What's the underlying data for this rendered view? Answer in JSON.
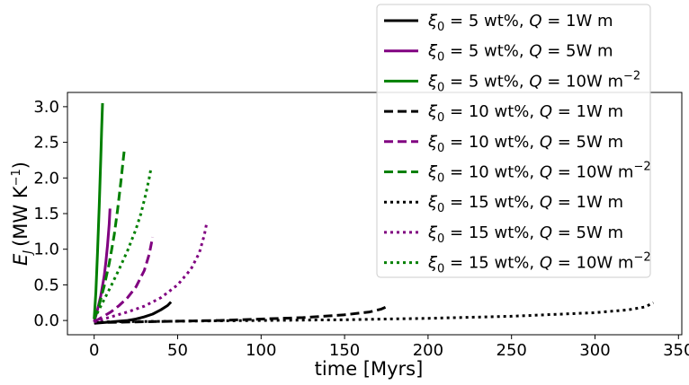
{
  "chart_data": {
    "type": "line",
    "title": "",
    "xlabel": "time [Myrs]",
    "ylabel": {
      "main": "E",
      "sub": "J",
      "unit": "(MW K",
      "unit_exp": "−1",
      "unit_close": ")"
    },
    "xlim": [
      -16,
      352
    ],
    "ylim": [
      -0.2,
      3.2
    ],
    "xticks": [
      0,
      50,
      100,
      150,
      200,
      250,
      300,
      350
    ],
    "yticks": [
      0.0,
      0.5,
      1.0,
      1.5,
      2.0,
      2.5,
      3.0
    ],
    "ytick_labels": [
      "0.0",
      "0.5",
      "1.0",
      "1.5",
      "2.0",
      "2.5",
      "3.0"
    ],
    "grid": false,
    "legend_placement": "top-right",
    "colors": {
      "black": "#000000",
      "purple": "#800080",
      "green": "#008000"
    },
    "series": [
      {
        "label": {
          "xi": "5",
          "Q": "1",
          "exp": ""
        },
        "color": "black",
        "dash": "solid",
        "x": [
          0,
          5,
          10,
          15,
          20,
          25,
          30,
          35,
          40,
          44,
          46
        ],
        "y": [
          -0.04,
          -0.03,
          -0.02,
          -0.01,
          0.0,
          0.02,
          0.05,
          0.09,
          0.15,
          0.21,
          0.26
        ]
      },
      {
        "label": {
          "xi": "5",
          "Q": "5",
          "exp": ""
        },
        "color": "purple",
        "dash": "solid",
        "x": [
          0,
          2,
          4,
          6,
          7,
          8,
          9,
          9.5
        ],
        "y": [
          -0.02,
          0.15,
          0.35,
          0.62,
          0.82,
          1.05,
          1.35,
          1.57
        ]
      },
      {
        "label": {
          "xi": "5",
          "Q": "10",
          "exp": "−2"
        },
        "color": "green",
        "dash": "solid",
        "x": [
          0,
          1,
          2,
          3,
          3.5,
          4,
          4.5,
          5
        ],
        "y": [
          0.02,
          0.4,
          0.95,
          1.6,
          1.95,
          2.3,
          2.68,
          3.05
        ]
      },
      {
        "label": {
          "xi": "10",
          "Q": "1",
          "exp": ""
        },
        "color": "black",
        "dash": "dashed",
        "x": [
          0,
          25,
          50,
          75,
          100,
          125,
          150,
          165,
          172,
          175
        ],
        "y": [
          -0.03,
          -0.02,
          -0.01,
          0.0,
          0.02,
          0.04,
          0.08,
          0.12,
          0.16,
          0.19
        ]
      },
      {
        "label": {
          "xi": "10",
          "Q": "5",
          "exp": ""
        },
        "color": "purple",
        "dash": "dashed",
        "x": [
          0,
          5,
          10,
          15,
          20,
          25,
          30,
          33,
          35
        ],
        "y": [
          -0.02,
          0.05,
          0.12,
          0.21,
          0.32,
          0.47,
          0.7,
          0.93,
          1.17
        ]
      },
      {
        "label": {
          "xi": "10",
          "Q": "10",
          "exp": "−2"
        },
        "color": "green",
        "dash": "dashed",
        "x": [
          0,
          3,
          6,
          9,
          12,
          14,
          16,
          17.5,
          18
        ],
        "y": [
          0.02,
          0.22,
          0.48,
          0.8,
          1.2,
          1.55,
          1.95,
          2.28,
          2.38
        ]
      },
      {
        "label": {
          "xi": "15",
          "Q": "1",
          "exp": ""
        },
        "color": "black",
        "dash": "dotted",
        "x": [
          0,
          50,
          100,
          150,
          200,
          250,
          300,
          320,
          330,
          335
        ],
        "y": [
          -0.02,
          -0.01,
          0.0,
          0.01,
          0.03,
          0.06,
          0.11,
          0.15,
          0.19,
          0.25
        ]
      },
      {
        "label": {
          "xi": "15",
          "Q": "5",
          "exp": ""
        },
        "color": "purple",
        "dash": "dotted",
        "x": [
          0,
          10,
          20,
          30,
          40,
          50,
          58,
          63,
          66,
          67.5
        ],
        "y": [
          -0.02,
          0.05,
          0.12,
          0.2,
          0.32,
          0.5,
          0.72,
          0.95,
          1.2,
          1.38
        ]
      },
      {
        "label": {
          "xi": "15",
          "Q": "10",
          "exp": "−2"
        },
        "color": "green",
        "dash": "dotted",
        "x": [
          0,
          5,
          10,
          15,
          20,
          25,
          28,
          31,
          33,
          34
        ],
        "y": [
          0.02,
          0.25,
          0.48,
          0.72,
          0.98,
          1.28,
          1.5,
          1.78,
          2.0,
          2.13
        ]
      }
    ],
    "legend_text": {
      "xi_symbol": "ξ",
      "xi_sub": "0",
      "eq": " = ",
      "wt": " wt%, ",
      "Q_symbol": "Q",
      "unit": "W m"
    }
  }
}
